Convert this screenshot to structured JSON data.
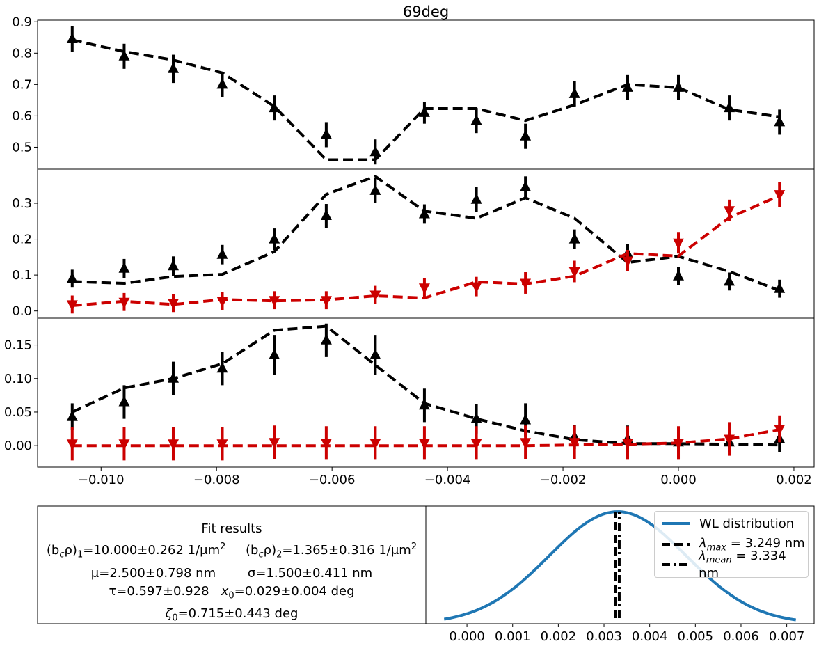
{
  "figure_title": "69deg",
  "chart_data": [
    {
      "type": "line",
      "panel": "top",
      "x": [
        -0.0105,
        -0.0096,
        -0.00875,
        -0.0079,
        -0.007,
        -0.0061,
        -0.00525,
        -0.0044,
        -0.0035,
        -0.00265,
        -0.0018,
        -0.00088,
        0.0,
        0.00088,
        0.00175
      ],
      "series": [
        {
          "color": "#000000",
          "marker": "triangle-up",
          "points": [
            0.845,
            0.79,
            0.75,
            0.7,
            0.625,
            0.54,
            0.485,
            0.61,
            0.585,
            0.535,
            0.67,
            0.69,
            0.69,
            0.625,
            0.58
          ],
          "errors": [
            0.04,
            0.04,
            0.045,
            0.04,
            0.04,
            0.04,
            0.04,
            0.035,
            0.04,
            0.04,
            0.04,
            0.04,
            0.04,
            0.04,
            0.04
          ],
          "fit": [
            0.842,
            0.805,
            0.778,
            0.737,
            0.63,
            0.46,
            0.46,
            0.623,
            0.623,
            0.585,
            0.635,
            0.7,
            0.69,
            0.62,
            0.597
          ]
        }
      ],
      "xlim": [
        -0.0111,
        0.00235
      ],
      "ylim": [
        0.43,
        0.905
      ],
      "yticks": [
        0.5,
        0.6,
        0.7,
        0.8,
        0.9
      ],
      "ytick_labels": [
        "0.5",
        "0.6",
        "0.7",
        "0.8",
        "0.9"
      ],
      "xticks": [],
      "xtick_labels": []
    },
    {
      "type": "line",
      "panel": "middle",
      "x": [
        -0.0105,
        -0.0096,
        -0.00875,
        -0.0079,
        -0.007,
        -0.0061,
        -0.00525,
        -0.0044,
        -0.0035,
        -0.00265,
        -0.0018,
        -0.00088,
        0.0,
        0.00088,
        0.00175
      ],
      "series": [
        {
          "color": "#000000",
          "marker": "triangle-up",
          "points": [
            0.09,
            0.118,
            0.125,
            0.157,
            0.2,
            0.265,
            0.335,
            0.27,
            0.31,
            0.345,
            0.2,
            0.16,
            0.097,
            0.082,
            0.062
          ],
          "errors": [
            0.025,
            0.027,
            0.027,
            0.027,
            0.03,
            0.033,
            0.035,
            0.027,
            0.035,
            0.03,
            0.027,
            0.027,
            0.025,
            0.025,
            0.025
          ],
          "fit": [
            0.082,
            0.077,
            0.096,
            0.102,
            0.165,
            0.325,
            0.375,
            0.278,
            0.258,
            0.315,
            0.258,
            0.135,
            0.152,
            0.11,
            0.057
          ]
        },
        {
          "color": "#cc0000",
          "marker": "triangle-down",
          "points": [
            0.018,
            0.025,
            0.022,
            0.028,
            0.03,
            0.03,
            0.045,
            0.065,
            0.068,
            0.078,
            0.11,
            0.14,
            0.19,
            0.28,
            0.325
          ],
          "errors": [
            0.025,
            0.025,
            0.025,
            0.025,
            0.025,
            0.025,
            0.025,
            0.027,
            0.027,
            0.03,
            0.03,
            0.03,
            0.03,
            0.03,
            0.035
          ],
          "fit": [
            0.015,
            0.027,
            0.018,
            0.032,
            0.028,
            0.031,
            0.042,
            0.036,
            0.081,
            0.075,
            0.097,
            0.16,
            0.153,
            0.26,
            0.321
          ]
        }
      ],
      "xlim": [
        -0.0111,
        0.00235
      ],
      "ylim": [
        -0.02,
        0.395
      ],
      "yticks": [
        0.0,
        0.1,
        0.2,
        0.3
      ],
      "ytick_labels": [
        "0.0",
        "0.1",
        "0.2",
        "0.3"
      ],
      "xticks": [],
      "xtick_labels": []
    },
    {
      "type": "line",
      "panel": "bottom",
      "x": [
        -0.0105,
        -0.0096,
        -0.00875,
        -0.0079,
        -0.007,
        -0.0061,
        -0.00525,
        -0.0044,
        -0.0035,
        -0.00265,
        -0.0018,
        -0.00088,
        0.0,
        0.00088,
        0.00175
      ],
      "series": [
        {
          "color": "#000000",
          "marker": "triangle-up",
          "points": [
            0.043,
            0.065,
            0.1,
            0.115,
            0.135,
            0.157,
            0.135,
            0.06,
            0.04,
            0.038,
            0.013,
            0.01,
            0.005,
            0.005,
            0.01
          ],
          "errors": [
            0.02,
            0.025,
            0.025,
            0.025,
            0.03,
            0.025,
            0.03,
            0.025,
            0.022,
            0.025,
            0.018,
            0.02,
            0.015,
            0.015,
            0.02
          ],
          "fit": [
            0.05,
            0.086,
            0.1,
            0.122,
            0.172,
            0.178,
            0.12,
            0.063,
            0.04,
            0.022,
            0.009,
            0.003,
            0.003,
            0.002,
            0.001
          ]
        },
        {
          "color": "#cc0000",
          "marker": "triangle-down",
          "points": [
            0.003,
            0.003,
            0.003,
            0.003,
            0.005,
            0.004,
            0.004,
            0.004,
            0.004,
            0.005,
            0.005,
            0.004,
            0.004,
            0.01,
            0.025
          ],
          "errors": [
            0.025,
            0.025,
            0.025,
            0.025,
            0.025,
            0.025,
            0.025,
            0.025,
            0.025,
            0.025,
            0.025,
            0.025,
            0.025,
            0.025,
            0.02
          ],
          "fit": [
            0.0,
            0.0,
            0.0,
            0.0,
            0.0,
            0.0,
            0.0,
            0.0,
            0.0,
            0.0,
            0.001,
            0.002,
            0.004,
            0.01,
            0.024
          ]
        }
      ],
      "xlim": [
        -0.0111,
        0.00235
      ],
      "ylim": [
        -0.032,
        0.19
      ],
      "yticks": [
        0.0,
        0.05,
        0.1,
        0.15
      ],
      "ytick_labels": [
        "0.00",
        "0.05",
        "0.10",
        "0.15"
      ],
      "xticks": [
        -0.01,
        -0.008,
        -0.006,
        -0.004,
        -0.002,
        0.0,
        0.002
      ],
      "xtick_labels": [
        "−0.010",
        "−0.008",
        "−0.006",
        "−0.004",
        "−0.002",
        "0.000",
        "0.002"
      ]
    },
    {
      "type": "line",
      "panel": "distribution",
      "mean": 0.0033,
      "sigma": 0.0015,
      "x_range": [
        -0.0005,
        0.0072
      ],
      "lambda_max_x": 0.003249,
      "lambda_mean_x": 0.003334,
      "xlim": [
        -0.0009,
        0.0076
      ],
      "ylim": [
        0.0,
        1.05
      ],
      "xticks": [
        0.0,
        0.001,
        0.002,
        0.003,
        0.004,
        0.005,
        0.006,
        0.007
      ],
      "xtick_labels": [
        "0.000",
        "0.001",
        "0.002",
        "0.003",
        "0.004",
        "0.005",
        "0.006",
        "0.007"
      ],
      "series": [
        {
          "name": "WL distribution",
          "color": "#1f77b4"
        },
        {
          "name": "λ_max = 3.249 nm",
          "color": "#000000",
          "style": "dashed"
        },
        {
          "name": "λ_mean = 3.334 nm",
          "color": "#000000",
          "style": "dashdot"
        }
      ]
    }
  ],
  "fit_results": {
    "title": "Fit results",
    "line1a": "(b",
    "line1a_sub": "c",
    "line1a_rest": "ρ)",
    "line1a_sub2": "1",
    "line1a_val": "=10.000±0.262 1/μm",
    "line1b": "(b",
    "line1b_sub": "c",
    "line1b_rest": "ρ)",
    "line1b_sub2": "2",
    "line1b_val": "=1.365±0.316 1/μm",
    "sup2": "2",
    "line2a": "μ=2.500±0.798 nm",
    "line2b": "σ=1.500±0.411 nm",
    "line3a": "τ=0.597±0.928",
    "line3b_x": "x",
    "line3b_sub": "0",
    "line3b_val": "=0.029±0.004 deg",
    "line4_z": "ζ",
    "line4_sub": "0",
    "line4_val": "=0.715±0.443  deg"
  },
  "legend": {
    "wl": "WL distribution",
    "max_sym": "λ",
    "max_sub": "max",
    "max_val": " = 3.249 nm",
    "mean_sym": "λ",
    "mean_sub": "mean",
    "mean_val": " = 3.334 nm"
  }
}
